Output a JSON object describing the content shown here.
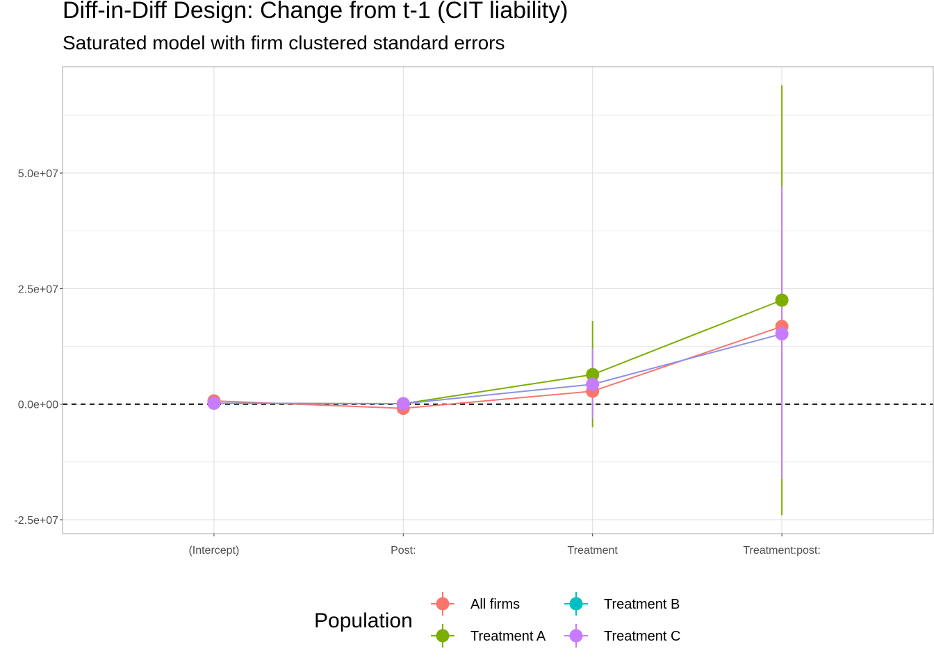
{
  "chart_data": {
    "type": "line",
    "title": "Diff-in-Diff Design: Change from t-1 (CIT liability)",
    "subtitle": "Saturated model with firm clustered standard errors",
    "xlabel": "",
    "ylabel": "",
    "categories": [
      "(Intercept)",
      "Post:",
      "Treatment",
      "Treatment:post:"
    ],
    "ylim": [
      -28000000,
      73000000
    ],
    "yticks": [
      -25000000,
      0,
      25000000,
      50000000
    ],
    "ytick_labels": [
      "-2.5e+07",
      "0.0e+00",
      "2.5e+07",
      "5.0e+07"
    ],
    "grid": true,
    "reference_line": {
      "y": 0,
      "style": "dashed"
    },
    "legend": {
      "title": "Population",
      "position": "bottom",
      "entries": [
        "All firms",
        "Treatment A",
        "Treatment B",
        "Treatment C"
      ]
    },
    "series": [
      {
        "name": "All firms",
        "color": "#F8766D",
        "values": [
          700000,
          -900000,
          2800000,
          16800000
        ],
        "ci_low": [
          null,
          null,
          null,
          null
        ],
        "ci_high": [
          null,
          null,
          null,
          null
        ]
      },
      {
        "name": "Treatment A",
        "color": "#7CAE00",
        "values": [
          200000,
          100000,
          6400000,
          22500000
        ],
        "ci_low": [
          null,
          null,
          -5000000,
          -24000000
        ],
        "ci_high": [
          null,
          null,
          18000000,
          69000000
        ]
      },
      {
        "name": "Treatment B",
        "color": "#00BFC4",
        "values": [
          null,
          null,
          null,
          null
        ],
        "ci_low": [
          null,
          null,
          null,
          null
        ],
        "ci_high": [
          null,
          null,
          null,
          null
        ]
      },
      {
        "name": "Treatment C",
        "color": "#C77CFF",
        "values": [
          200000,
          100000,
          4300000,
          15200000
        ],
        "ci_low": [
          null,
          null,
          -3000000,
          -16000000
        ],
        "ci_high": [
          null,
          null,
          12000000,
          47000000
        ]
      }
    ]
  }
}
